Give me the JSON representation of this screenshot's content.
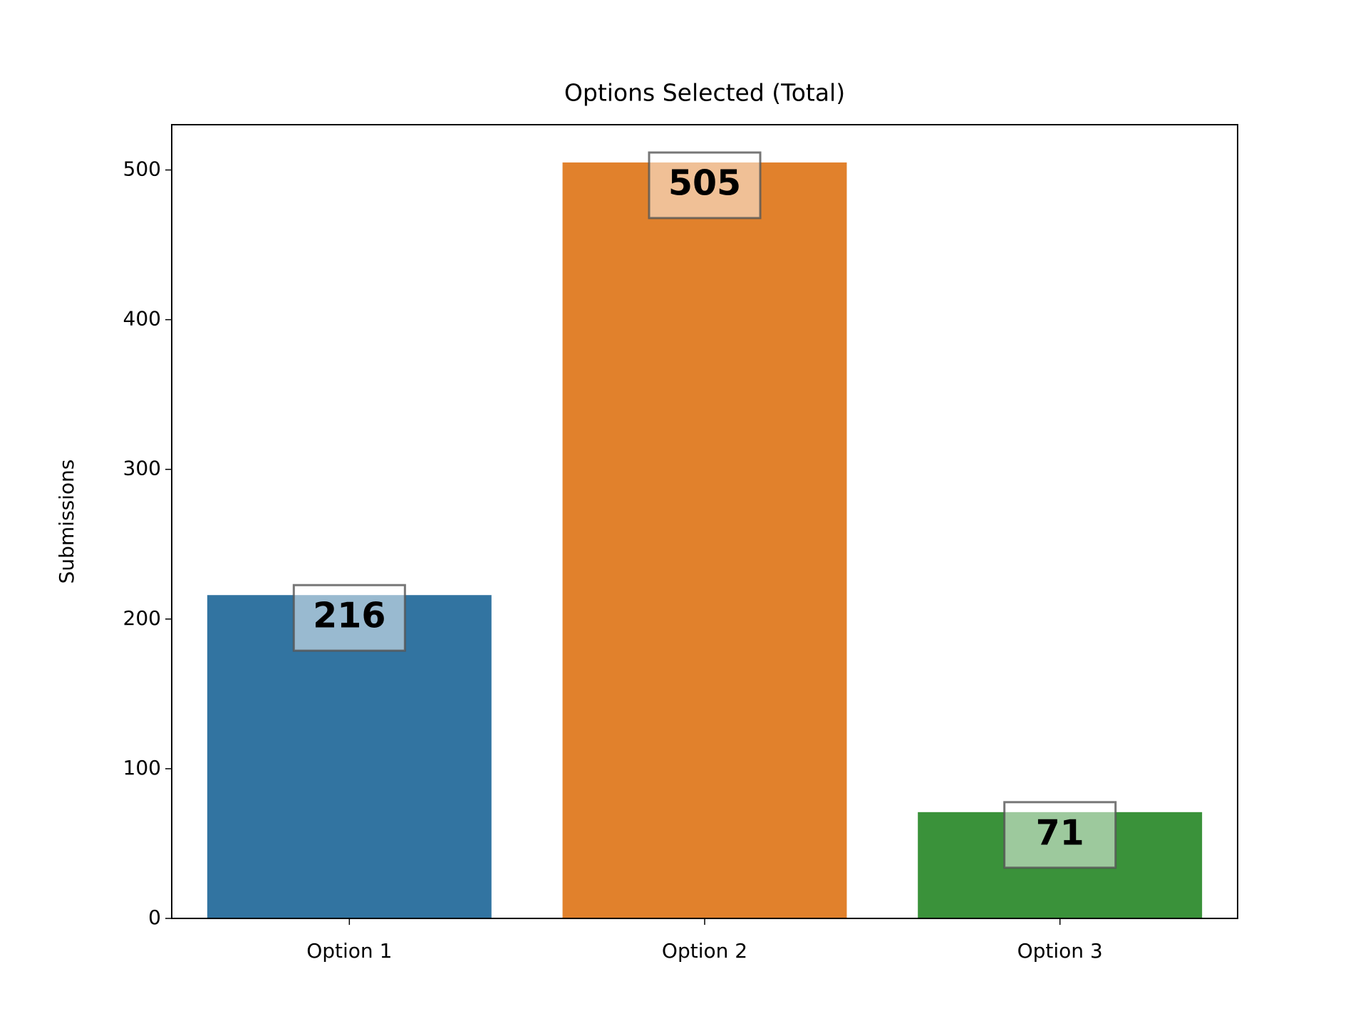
{
  "chart_data": {
    "type": "bar",
    "title": "Options Selected (Total)",
    "y_label": "Submissions",
    "categories": [
      "Option 1",
      "Option 2",
      "Option 3"
    ],
    "values": [
      216,
      505,
      71
    ],
    "colors": [
      "#3274a1",
      "#e1812c",
      "#3a923a"
    ],
    "ylim": [
      0,
      530.25
    ],
    "yticks": [
      0,
      100,
      200,
      300,
      400,
      500
    ]
  }
}
